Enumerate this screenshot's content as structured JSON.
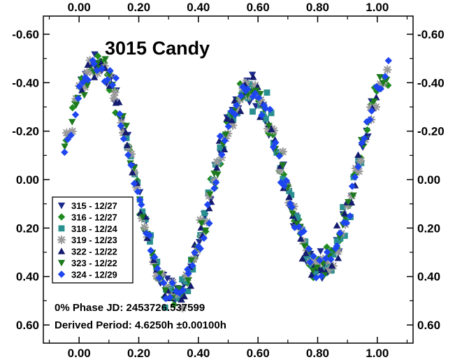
{
  "chart_data": {
    "type": "scatter",
    "title": "3015 Candy",
    "xlabel": "",
    "ylabel": "",
    "xlim": [
      -0.12,
      1.12
    ],
    "ylim": [
      -0.675,
      0.675
    ],
    "y_inverted": true,
    "x_ticks": [
      "0.00",
      "0.20",
      "0.40",
      "0.60",
      "0.80",
      "1.00"
    ],
    "x_tick_values": [
      0.0,
      0.2,
      0.4,
      0.6,
      0.8,
      1.0
    ],
    "y_ticks": [
      "-0.60",
      "-0.40",
      "-0.20",
      "0.00",
      "0.20",
      "0.40",
      "0.60"
    ],
    "y_tick_values": [
      -0.6,
      -0.4,
      -0.2,
      0.0,
      0.2,
      0.4,
      0.6
    ],
    "grid": false,
    "legend_position": "lower-left",
    "lightcurve_model": {
      "mean": 0.0,
      "harmonic1_cos": -0.07,
      "harmonic1_sin": 0.03,
      "harmonic2_cos": -0.29,
      "harmonic2_sin": -0.3,
      "scatter": 0.03
    },
    "series": [
      {
        "name": "315 - 12/27",
        "marker": "triangle-down",
        "color": "#1c2b8c",
        "x_range": [
          0.0,
          1.0
        ],
        "points": 90
      },
      {
        "name": "316 - 12/27",
        "marker": "diamond",
        "color": "#1f8a1f",
        "x_range": [
          -0.05,
          1.04
        ],
        "points": 95
      },
      {
        "name": "318 - 12/24",
        "marker": "square",
        "color": "#2a8f8f",
        "x_range": [
          0.15,
          0.95
        ],
        "points": 80
      },
      {
        "name": "319 - 12/23",
        "marker": "asterisk",
        "color": "#9a9a9a",
        "x_range": [
          -0.05,
          1.04
        ],
        "points": 90
      },
      {
        "name": "322 - 12/22",
        "marker": "triangle-up",
        "color": "#141b6e",
        "x_range": [
          0.0,
          1.0
        ],
        "points": 75
      },
      {
        "name": "323 - 12/22",
        "marker": "triangle-down",
        "color": "#1e7a1e",
        "x_range": [
          -0.05,
          1.04
        ],
        "points": 75
      },
      {
        "name": "324 - 12/29",
        "marker": "diamond",
        "color": "#1e46f0",
        "x_range": [
          -0.05,
          1.04
        ],
        "points": 110
      }
    ],
    "annotations": {
      "phase_jd": "0% Phase JD:  2453726.537599",
      "period": "Derived Period: 4.6250h   ±0.00100h"
    }
  }
}
